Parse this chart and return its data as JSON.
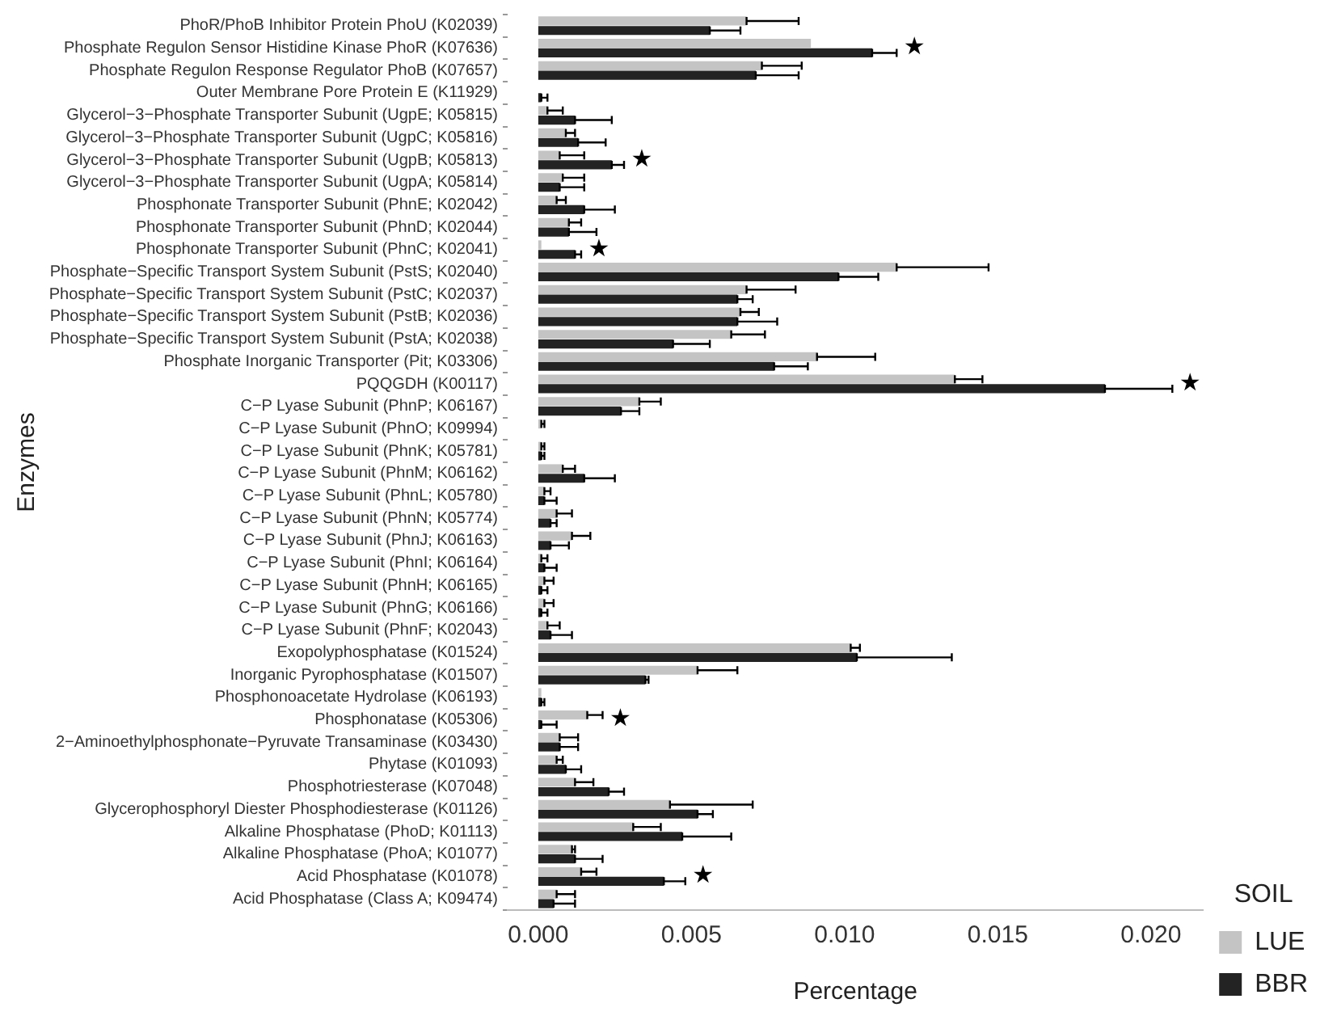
{
  "chart_data": {
    "type": "bar",
    "orientation": "horizontal",
    "xlabel": "Percentage",
    "ylabel": "Enzymes",
    "legend_title": "SOIL",
    "legend": "right",
    "grid": false,
    "categories": [
      "PhoR/PhoB Inhibitor Protein PhoU (K02039)",
      "Phosphate Regulon Sensor Histidine Kinase PhoR (K07636)",
      "Phosphate Regulon Response Regulator PhoB (K07657)",
      "Outer Membrane Pore Protein E (K11929)",
      "Glycerol−3−Phosphate Transporter Subunit (UgpE; K05815)",
      "Glycerol−3−Phosphate Transporter Subunit (UgpC; K05816)",
      "Glycerol−3−Phosphate Transporter Subunit (UgpB; K05813)",
      "Glycerol−3−Phosphate Transporter Subunit (UgpA; K05814)",
      "Phosphonate Transporter Subunit (PhnE; K02042)",
      "Phosphonate Transporter Subunit (PhnD; K02044)",
      "Phosphonate Transporter Subunit (PhnC; K02041)",
      "Phosphate−Specific Transport System Subunit (PstS; K02040)",
      "Phosphate−Specific Transport System Subunit (PstC; K02037)",
      "Phosphate−Specific Transport System Subunit (PstB; K02036)",
      "Phosphate−Specific Transport System Subunit (PstA; K02038)",
      "Phosphate Inorganic Transporter (Pit; K03306)",
      "PQQGDH (K00117)",
      "C−P Lyase Subunit (PhnP; K06167)",
      "C−P Lyase Subunit (PhnO; K09994)",
      "C−P Lyase Subunit (PhnK; K05781)",
      "C−P Lyase Subunit (PhnM; K06162)",
      "C−P Lyase Subunit (PhnL; K05780)",
      "C−P Lyase Subunit (PhnN; K05774)",
      "C−P Lyase Subunit (PhnJ; K06163)",
      "C−P Lyase Subunit (PhnI; K06164)",
      "C−P Lyase Subunit (PhnH; K06165)",
      "C−P Lyase Subunit (PhnG; K06166)",
      "C−P Lyase Subunit (PhnF; K02043)",
      "Exopolyphosphatase (K01524)",
      "Inorganic Pyrophosphatase (K01507)",
      "Phosphonoacetate Hydrolase (K06193)",
      "Phosphonatase (K05306)",
      "2−Aminoethylphosphonate−Pyruvate Transaminase (K03430)",
      "Phytase (K01093)",
      "Phosphotriesterase (K07048)",
      "Glycerophosphoryl Diester Phosphodiesterase (K01126)",
      "Alkaline Phosphatase (PhoD; K01113)",
      "Alkaline Phosphatase (PhoA; K01077)",
      "Acid Phosphatase (K01078)",
      "Acid Phosphatase (Class A; K09474)"
    ],
    "series": [
      {
        "name": "LUE",
        "color": "#c4c4c4",
        "values": [
          0.0068,
          0.0089,
          0.0073,
          0,
          0.0003,
          0.0009,
          0.0007,
          0.0008,
          0.0006,
          0.001,
          0.0001,
          0.0117,
          0.0068,
          0.0066,
          0.0063,
          0.0091,
          0.0136,
          0.0033,
          0.0001,
          0.0001,
          0.0008,
          0.0002,
          0.0006,
          0.0011,
          0.0001,
          0.0002,
          0.0002,
          0.0003,
          0.0102,
          0.0052,
          0.0001,
          0.0016,
          0.0007,
          0.0006,
          0.0012,
          0.0043,
          0.0031,
          0.0011,
          0.0014,
          0.0006
        ],
        "errors": [
          [
            0.0068,
            0.0085
          ],
          null,
          [
            0.0073,
            0.0086
          ],
          null,
          [
            0.0003,
            0.0008
          ],
          [
            0.0009,
            0.0012
          ],
          [
            0.0007,
            0.0015
          ],
          [
            0.0008,
            0.0015
          ],
          [
            0.0006,
            0.0009
          ],
          [
            0.001,
            0.0014
          ],
          null,
          [
            0.0117,
            0.0147
          ],
          [
            0.0068,
            0.0084
          ],
          [
            0.0066,
            0.0072
          ],
          [
            0.0063,
            0.0074
          ],
          [
            0.0091,
            0.011
          ],
          [
            0.0136,
            0.0145
          ],
          [
            0.0033,
            0.004
          ],
          [
            0.0001,
            0.0002
          ],
          [
            0.0001,
            0.0002
          ],
          [
            0.0008,
            0.0012
          ],
          [
            0.0002,
            0.0004
          ],
          [
            0.0006,
            0.0011
          ],
          [
            0.0011,
            0.0017
          ],
          [
            0.0001,
            0.0003
          ],
          [
            0.0002,
            0.0005
          ],
          [
            0.0002,
            0.0005
          ],
          [
            0.0003,
            0.0007
          ],
          [
            0.0102,
            0.0105
          ],
          [
            0.0052,
            0.0065
          ],
          null,
          [
            0.0016,
            0.0021
          ],
          [
            0.0007,
            0.0013
          ],
          [
            0.0006,
            0.0008
          ],
          [
            0.0012,
            0.0018
          ],
          [
            0.0043,
            0.007
          ],
          [
            0.0031,
            0.004
          ],
          [
            0.0011,
            0.0012
          ],
          [
            0.0014,
            0.0019
          ],
          [
            0.0006,
            0.0012
          ]
        ]
      },
      {
        "name": "BBR",
        "color": "#232323",
        "values": [
          0.0056,
          0.0109,
          0.0071,
          0.0001,
          0.0012,
          0.0013,
          0.0024,
          0.0007,
          0.0015,
          0.001,
          0.0012,
          0.0098,
          0.0065,
          0.0065,
          0.0044,
          0.0077,
          0.0185,
          0.0027,
          0,
          0.0001,
          0.0015,
          0.0002,
          0.0004,
          0.0004,
          0.0002,
          0.0001,
          0.0001,
          0.0004,
          0.0104,
          0.0035,
          0.0001,
          0.0001,
          0.0007,
          0.0009,
          0.0023,
          0.0052,
          0.0047,
          0.0012,
          0.0041,
          0.0005
        ],
        "errors": [
          [
            0.0056,
            0.0066
          ],
          [
            0.0109,
            0.0117
          ],
          [
            0.0071,
            0.0085
          ],
          [
            0.0001,
            0.0003
          ],
          [
            0.0012,
            0.0024
          ],
          [
            0.0013,
            0.0022
          ],
          [
            0.0024,
            0.0028
          ],
          [
            0.0007,
            0.0015
          ],
          [
            0.0015,
            0.0025
          ],
          [
            0.001,
            0.0019
          ],
          [
            0.0012,
            0.0014
          ],
          [
            0.0098,
            0.0111
          ],
          [
            0.0065,
            0.007
          ],
          [
            0.0065,
            0.0078
          ],
          [
            0.0044,
            0.0056
          ],
          [
            0.0077,
            0.0088
          ],
          [
            0.0185,
            0.0207
          ],
          [
            0.0027,
            0.0033
          ],
          null,
          [
            0.0001,
            0.0002
          ],
          [
            0.0015,
            0.0025
          ],
          [
            0.0002,
            0.0006
          ],
          [
            0.0004,
            0.0006
          ],
          [
            0.0004,
            0.001
          ],
          [
            0.0002,
            0.0006
          ],
          [
            0.0001,
            0.0003
          ],
          [
            0.0001,
            0.0003
          ],
          [
            0.0004,
            0.0011
          ],
          [
            0.0104,
            0.0135
          ],
          [
            0.0035,
            0.0036
          ],
          [
            0.0001,
            0.0002
          ],
          [
            0.0001,
            0.0006
          ],
          [
            0.0007,
            0.0013
          ],
          [
            0.0009,
            0.0014
          ],
          [
            0.0023,
            0.0028
          ],
          [
            0.0052,
            0.0057
          ],
          [
            0.0047,
            0.0063
          ],
          [
            0.0012,
            0.0021
          ],
          [
            0.0041,
            0.0048
          ],
          [
            0.0005,
            0.0012
          ]
        ]
      }
    ],
    "xlim": [
      -0.001,
      0.0217
    ],
    "xticks": [
      {
        "value": 0,
        "label": "0.000"
      },
      {
        "value": 0.005,
        "label": "0.005"
      },
      {
        "value": 0.01,
        "label": "0.010"
      },
      {
        "value": 0.015,
        "label": "0.015"
      },
      {
        "value": 0.02,
        "label": "0.020"
      }
    ],
    "annotations": [
      {
        "text": "★",
        "x": 0.0117,
        "y": "Phosphate Regulon Sensor Histidine Kinase PhoR (K07636)"
      },
      {
        "text": "★",
        "x": 0.0028,
        "y": "Glycerol−3−Phosphate Transporter Subunit (UgpB; K05813)"
      },
      {
        "text": "★",
        "x": 0.0014,
        "y": "Phosphonate Transporter Subunit (PhnC; K02041)"
      },
      {
        "text": "★",
        "x": 0.0207,
        "y": "PQQGDH (K00117)"
      },
      {
        "text": "★",
        "x": 0.0021,
        "y": "Phosphonatase (K05306)"
      },
      {
        "text": "★",
        "x": 0.0048,
        "y": "Acid Phosphatase (K01078)"
      }
    ]
  }
}
